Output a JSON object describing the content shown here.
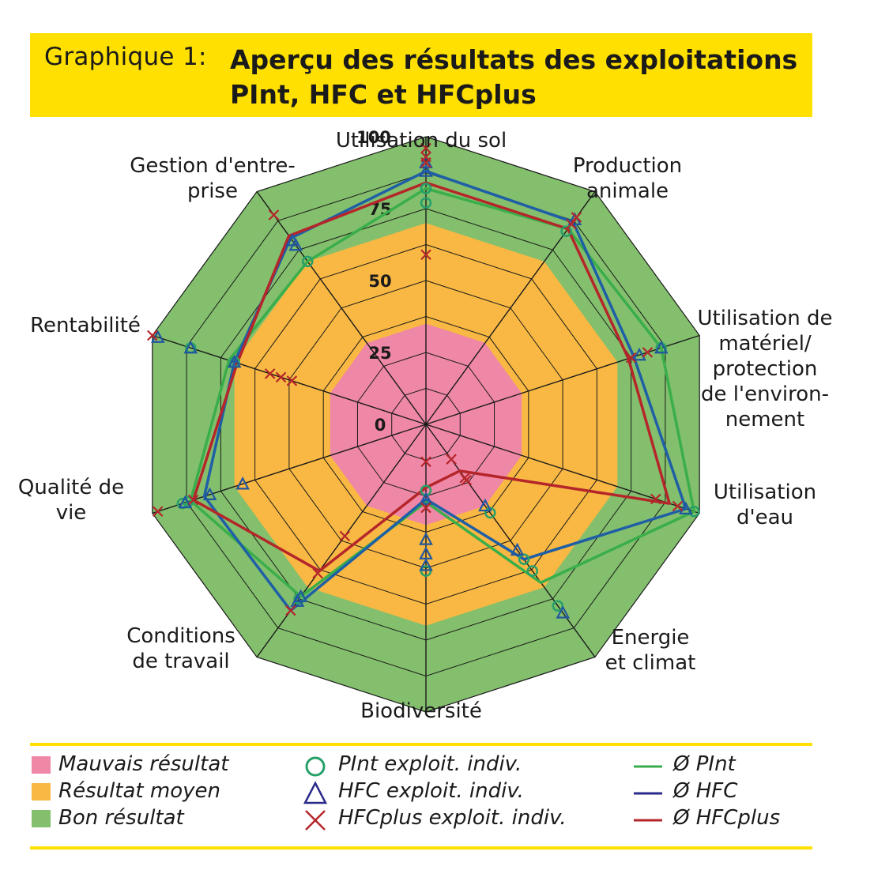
{
  "title": {
    "prefix": "Graphique 1:",
    "main": "Aperçu des résultats des exploitations PInt, HFC et HFCplus"
  },
  "colors": {
    "title_bg": "#ffe000",
    "bad": "#ef87a6",
    "medium": "#f8b843",
    "good": "#83bf6d",
    "pint": "#3aae4a",
    "hfc": "#1f5fa6",
    "hfcplus": "#b5262a",
    "marker_pint": "#26a06a",
    "marker_hfc": "#2156a0",
    "marker_hfcplus": "#b5262a"
  },
  "chart_data": {
    "type": "radar",
    "axes": [
      "Utilisation du sol",
      "Production animale",
      "Utilisation de matériel/ protection de l'environ- nement",
      "Utilisation d'eau",
      "Energie et climat",
      "Biodiversité",
      "Conditions de travail",
      "Qualité de vie",
      "Rentabilité",
      "Gestion d'entre- prise"
    ],
    "axis_label_lines": [
      [
        "Utilisation du sol"
      ],
      [
        "Production",
        "animale"
      ],
      [
        "Utilisation de",
        "matériel/",
        "protection",
        "de l'environ-",
        "nement"
      ],
      [
        "Utilisation",
        "d'eau"
      ],
      [
        "Energie",
        "et climat"
      ],
      [
        "Biodiversité"
      ],
      [
        "Conditions",
        "de travail"
      ],
      [
        "Qualité de",
        "vie"
      ],
      [
        "Rentabilité"
      ],
      [
        "Gestion d'entre-",
        "prise"
      ]
    ],
    "r_ticks": [
      0,
      25,
      50,
      75,
      100
    ],
    "r_range": [
      0,
      100
    ],
    "zones": [
      {
        "name": "Mauvais résultat",
        "from": 0,
        "to": 35
      },
      {
        "name": "Résultat moyen",
        "from": 35,
        "to": 70
      },
      {
        "name": "Bon résultat",
        "from": 70,
        "to": 100
      }
    ],
    "series": [
      {
        "name": "Ø PInt",
        "values": [
          82,
          84,
          86,
          98,
          68,
          27,
          74,
          86,
          72,
          70
        ]
      },
      {
        "name": "Ø HFC",
        "values": [
          88,
          87,
          76,
          95,
          58,
          26,
          80,
          81,
          70,
          80
        ]
      },
      {
        "name": "Ø HFCplus",
        "values": [
          84,
          84,
          74,
          89,
          20,
          22,
          63,
          85,
          69,
          81
        ]
      }
    ],
    "points": [
      {
        "name": "PInt exploit. indiv.",
        "values": [
          [
            82,
            77
          ],
          [
            83
          ],
          [
            86
          ],
          [
            98
          ],
          [
            38,
            58,
            63,
            78
          ],
          [
            23,
            51
          ],
          [
            75
          ],
          [
            89,
            87
          ],
          [
            70,
            86
          ],
          [
            70
          ]
        ]
      },
      {
        "name": "HFC exploit. indiv.",
        "values": [
          [
            88,
            91
          ],
          [
            88
          ],
          [
            86,
            78
          ],
          [
            95
          ],
          [
            35,
            54,
            81
          ],
          [
            26,
            40,
            45,
            49
          ],
          [
            76,
            74
          ],
          [
            88,
            79,
            67
          ],
          [
            70,
            86,
            98
          ],
          [
            77,
            79
          ]
        ]
      },
      {
        "name": "HFCplus exploit. indiv.",
        "values": [
          [
            59,
            91,
            93,
            96
          ],
          [
            86,
            89
          ],
          [
            75,
            81
          ],
          [
            84,
            92
          ],
          [
            15,
            23,
            24
          ],
          [
            13,
            29
          ],
          [
            48,
            64,
            80
          ],
          [
            98,
            85
          ],
          [
            49,
            53,
            57,
            100
          ],
          [
            90
          ]
        ]
      }
    ]
  },
  "legend": {
    "zones": [
      "Mauvais résultat",
      "Résultat moyen",
      "Bon résultat"
    ],
    "points": [
      "PInt exploit. indiv.",
      "HFC exploit. indiv.",
      "HFCplus exploit. indiv."
    ],
    "lines": [
      "Ø PInt",
      "Ø HFC",
      "Ø HFCplus"
    ]
  }
}
